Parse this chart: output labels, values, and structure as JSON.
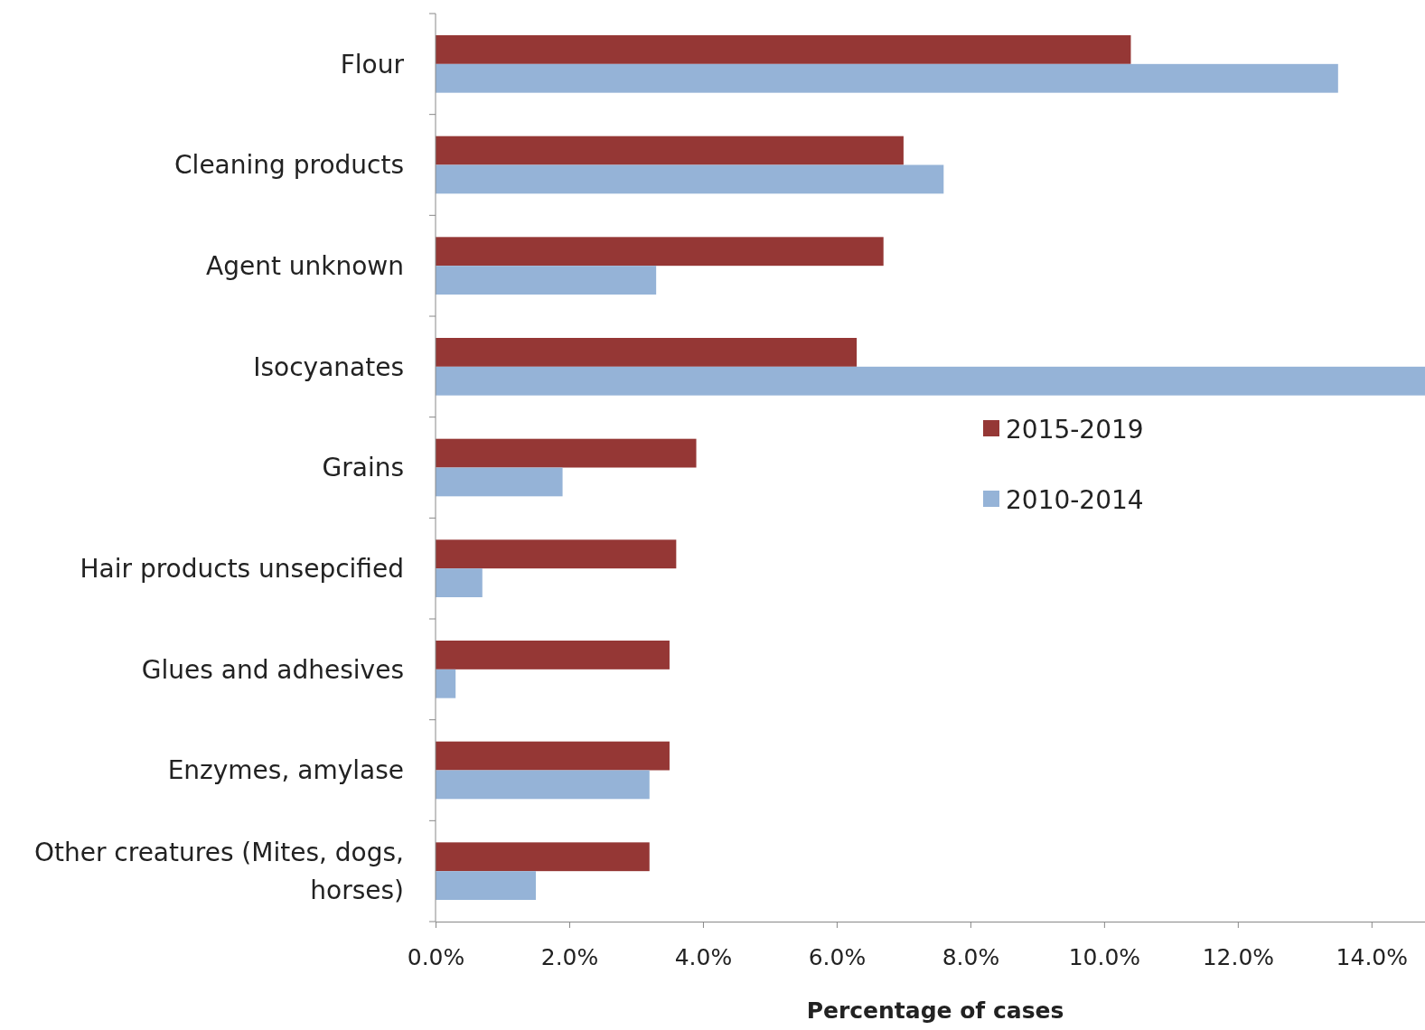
{
  "chart_data": {
    "type": "bar",
    "orientation": "horizontal",
    "xlabel": "Percentage of cases",
    "categories": [
      "Flour",
      "Cleaning products",
      "Agent unknown",
      "Isocyanates",
      "Grains",
      "Hair products unsepcified",
      "Glues and adhesives",
      "Enzymes, amylase",
      "Other creatures (Mites, dogs, horses)"
    ],
    "series": [
      {
        "name": "2015-2019",
        "color": "#953735",
        "values": [
          10.4,
          7.0,
          6.7,
          6.3,
          3.9,
          3.6,
          3.5,
          3.5,
          3.2
        ]
      },
      {
        "name": "2010-2014",
        "color": "#95b3d7",
        "values": [
          13.5,
          7.6,
          3.3,
          14.8,
          1.9,
          0.7,
          0.3,
          3.2,
          1.5
        ]
      }
    ],
    "xlim": [
      0,
      14.8
    ],
    "xticks": [
      {
        "value": 0,
        "label": "0.0%"
      },
      {
        "value": 2,
        "label": "2.0%"
      },
      {
        "value": 4,
        "label": "4.0%"
      },
      {
        "value": 6,
        "label": "6.0%"
      },
      {
        "value": 8,
        "label": "8.0%"
      },
      {
        "value": 10,
        "label": "10.0%"
      },
      {
        "value": 12,
        "label": "12.0%"
      },
      {
        "value": 14,
        "label": "14.0%"
      }
    ],
    "grid": false,
    "legend": "right"
  }
}
